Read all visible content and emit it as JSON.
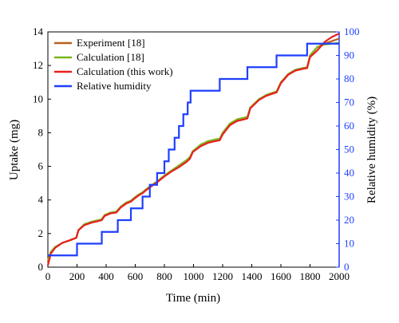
{
  "chart_data": {
    "type": "line",
    "xlabel": "Time (min)",
    "ylabel": "Uptake (mg)",
    "y2label": "Relative humidity (%)",
    "xlim": [
      0,
      2000
    ],
    "xticks": [
      0,
      200,
      400,
      600,
      800,
      1000,
      1200,
      1400,
      1600,
      1800,
      2000
    ],
    "ylim": [
      0,
      14
    ],
    "yticks": [
      0,
      2,
      4,
      6,
      8,
      10,
      12,
      14
    ],
    "y2lim": [
      0,
      100
    ],
    "y2ticks": [
      0,
      10,
      20,
      30,
      40,
      50,
      60,
      70,
      80,
      90,
      100
    ],
    "y2color": "#1f3fff",
    "legend": "upper left",
    "series": [
      {
        "name": "Experiment [18]",
        "color": "#b8611f",
        "x": [
          0,
          20,
          50,
          100,
          150,
          195,
          210,
          250,
          300,
          350,
          370,
          390,
          430,
          470,
          480,
          500,
          540,
          570,
          590,
          620,
          650,
          670,
          700,
          750,
          800,
          850,
          900,
          950,
          975,
          995,
          1050,
          1100,
          1150,
          1180,
          1200,
          1250,
          1300,
          1350,
          1370,
          1390,
          1450,
          1500,
          1550,
          1570,
          1600,
          1650,
          1700,
          1750,
          1780,
          1800,
          1850,
          1900,
          1950,
          2000
        ],
        "values": [
          0.3,
          0.9,
          1.2,
          1.45,
          1.6,
          1.75,
          2.2,
          2.55,
          2.7,
          2.8,
          2.85,
          3.1,
          3.25,
          3.3,
          3.4,
          3.6,
          3.85,
          3.95,
          4.1,
          4.3,
          4.45,
          4.6,
          4.8,
          5.1,
          5.45,
          5.75,
          6.05,
          6.35,
          6.5,
          6.9,
          7.25,
          7.45,
          7.55,
          7.6,
          7.95,
          8.5,
          8.75,
          8.85,
          8.9,
          9.5,
          10.0,
          10.2,
          10.35,
          10.4,
          11.0,
          11.45,
          11.7,
          11.8,
          11.85,
          12.6,
          13.1,
          13.3,
          13.45,
          13.6
        ]
      },
      {
        "name": "Calculation [18]",
        "color": "#79b51c",
        "x": [
          0,
          20,
          50,
          100,
          150,
          195,
          210,
          250,
          300,
          350,
          370,
          390,
          430,
          470,
          480,
          500,
          540,
          570,
          590,
          620,
          650,
          670,
          700,
          750,
          800,
          850,
          900,
          950,
          975,
          995,
          1050,
          1100,
          1150,
          1180,
          1200,
          1250,
          1300,
          1350,
          1370,
          1390,
          1450,
          1500,
          1550,
          1570,
          1600,
          1650,
          1700,
          1750,
          1780,
          1800,
          1850,
          1900,
          1950,
          2000
        ],
        "values": [
          0.4,
          0.9,
          1.2,
          1.45,
          1.6,
          1.75,
          2.2,
          2.55,
          2.7,
          2.8,
          2.85,
          3.1,
          3.25,
          3.3,
          3.4,
          3.6,
          3.85,
          3.95,
          4.1,
          4.3,
          4.45,
          4.6,
          4.8,
          5.1,
          5.45,
          5.75,
          6.05,
          6.35,
          6.55,
          6.9,
          7.3,
          7.5,
          7.6,
          7.65,
          8.0,
          8.55,
          8.8,
          8.9,
          8.95,
          9.5,
          10.0,
          10.25,
          10.4,
          10.45,
          11.0,
          11.5,
          11.75,
          11.85,
          11.9,
          12.6,
          13.1,
          13.25,
          13.3,
          13.35
        ]
      },
      {
        "name": "Calculation (this work)",
        "color": "#e8201e",
        "x": [
          0,
          20,
          50,
          100,
          150,
          195,
          210,
          250,
          300,
          350,
          370,
          390,
          430,
          470,
          480,
          500,
          540,
          570,
          590,
          620,
          650,
          670,
          700,
          750,
          800,
          850,
          900,
          950,
          975,
          995,
          1050,
          1100,
          1150,
          1180,
          1200,
          1250,
          1300,
          1350,
          1370,
          1390,
          1450,
          1500,
          1550,
          1570,
          1600,
          1650,
          1700,
          1750,
          1780,
          1800,
          1850,
          1900,
          1950,
          2000
        ],
        "values": [
          0.1,
          0.8,
          1.15,
          1.45,
          1.6,
          1.75,
          2.2,
          2.5,
          2.65,
          2.75,
          2.8,
          3.05,
          3.2,
          3.25,
          3.35,
          3.55,
          3.8,
          3.9,
          4.05,
          4.25,
          4.4,
          4.55,
          4.75,
          5.05,
          5.4,
          5.7,
          5.95,
          6.25,
          6.45,
          6.85,
          7.2,
          7.4,
          7.5,
          7.55,
          7.9,
          8.45,
          8.7,
          8.8,
          8.85,
          9.45,
          9.95,
          10.2,
          10.35,
          10.4,
          10.95,
          11.45,
          11.7,
          11.8,
          11.85,
          12.5,
          12.9,
          13.4,
          13.7,
          13.9
        ]
      },
      {
        "name": "Relative humidity",
        "color": "#1f3fff",
        "axis": "y2",
        "drawstyle": "steps-post",
        "x": [
          0,
          200,
          370,
          480,
          570,
          650,
          700,
          750,
          800,
          830,
          870,
          900,
          930,
          960,
          980,
          1180,
          1370,
          1570,
          1780,
          2000
        ],
        "values": [
          5,
          10,
          15,
          20,
          25,
          30,
          35,
          40,
          45,
          50,
          55,
          60,
          65,
          70,
          75,
          80,
          85,
          90,
          95,
          95
        ]
      }
    ]
  }
}
